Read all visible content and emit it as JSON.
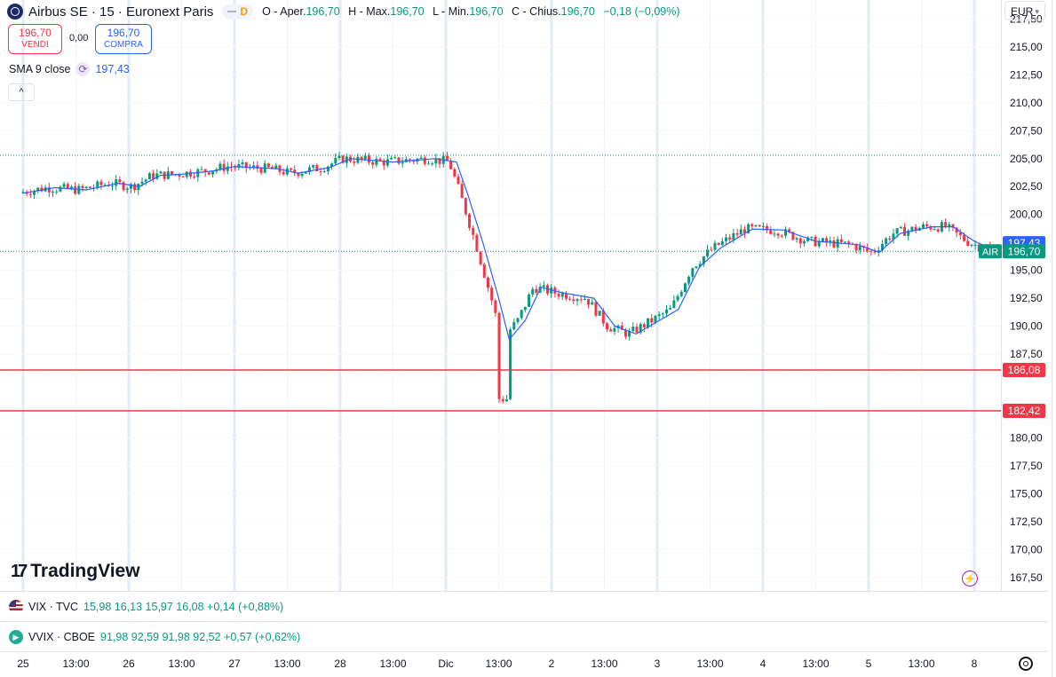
{
  "header": {
    "title": "Airbus SE · 15 · Euronext Paris",
    "flag_letter": "D",
    "ohlc": {
      "open_label": "O - Aper.",
      "open": "196,70",
      "high_label": "H - Max.",
      "high": "196,70",
      "low_label": "L - Min.",
      "low": "196,70",
      "close_label": "C - Chius.",
      "close": "196,70",
      "change": "−0,18 (−0,09%)"
    }
  },
  "trade": {
    "sell_price": "196,70",
    "sell_label": "VENDI",
    "spread": "0,00",
    "buy_price": "196,70",
    "buy_label": "COMPRA"
  },
  "sma": {
    "label": "SMA 9 close",
    "value": "197,43"
  },
  "collapse_glyph": "^",
  "currency": "EUR",
  "brand": "TradingView",
  "indicators": [
    {
      "label": "VIX · TVC",
      "values": "15,98  16,13  15,97  16,08  +0,14 (+0,88%)"
    },
    {
      "label": "VVIX · CBOE",
      "values": "91,98  92,59  91,98  92,52  +0,57 (+0,62%)"
    }
  ],
  "colors": {
    "up": "#089981",
    "down": "#f23645",
    "sma": "#2962ff",
    "level": "#f23645"
  },
  "chart_data": {
    "type": "candlestick",
    "symbol": "AIR",
    "ylim": [
      166.3,
      219.2
    ],
    "y_ticks": [
      "217,50",
      "215,00",
      "212,50",
      "210,00",
      "207,50",
      "205,00",
      "202,50",
      "200,00",
      "195,00",
      "192,50",
      "190,00",
      "187,50",
      "180,00",
      "177,50",
      "175,00",
      "172,50",
      "170,00",
      "167,50"
    ],
    "x_ticks": [
      "25",
      "13:00",
      "26",
      "13:00",
      "27",
      "13:00",
      "28",
      "13:00",
      "Dic",
      "13:00",
      "2",
      "13:00",
      "3",
      "13:00",
      "4",
      "13:00",
      "5",
      "13:00",
      "8"
    ],
    "price_labels": [
      {
        "text": "197,43",
        "value": 197.43,
        "color": "#2962ff"
      },
      {
        "text": "196,70",
        "value": 196.7,
        "color": "#089981",
        "tag": "AIR"
      },
      {
        "text": "186,08",
        "value": 186.08,
        "color": "#f23645"
      },
      {
        "text": "182,42",
        "value": 182.42,
        "color": "#f23645"
      }
    ],
    "horizontal_levels": [
      186.08,
      182.42
    ],
    "dotted_levels": [
      205.3,
      196.7
    ],
    "series": [
      {
        "name": "SMA 9 close",
        "points": [
          [
            0.0,
            201.9
          ],
          [
            0.3,
            202.4
          ],
          [
            0.6,
            202.2
          ],
          [
            0.9,
            202.8
          ],
          [
            1.1,
            202.5
          ],
          [
            1.3,
            203.5
          ],
          [
            1.5,
            203.6
          ],
          [
            1.8,
            203.9
          ],
          [
            2.0,
            204.3
          ],
          [
            2.4,
            204.1
          ],
          [
            2.6,
            203.7
          ],
          [
            2.9,
            204.2
          ],
          [
            3.1,
            205.0
          ],
          [
            3.5,
            204.7
          ],
          [
            3.9,
            205.0
          ],
          [
            4.1,
            204.7
          ],
          [
            4.2,
            202.0
          ],
          [
            4.35,
            197.5
          ],
          [
            4.5,
            192.5
          ],
          [
            4.6,
            188.8
          ],
          [
            4.75,
            190.5
          ],
          [
            4.9,
            193.5
          ],
          [
            5.1,
            193.0
          ],
          [
            5.4,
            192.5
          ],
          [
            5.6,
            190.0
          ],
          [
            5.8,
            189.3
          ],
          [
            6.0,
            190.4
          ],
          [
            6.2,
            191.5
          ],
          [
            6.4,
            195.3
          ],
          [
            6.6,
            197.0
          ],
          [
            6.9,
            198.7
          ],
          [
            7.2,
            198.6
          ],
          [
            7.5,
            197.6
          ],
          [
            7.9,
            197.3
          ],
          [
            8.1,
            196.6
          ],
          [
            8.3,
            198.3
          ],
          [
            8.6,
            198.9
          ],
          [
            8.8,
            198.9
          ],
          [
            9.0,
            197.6
          ],
          [
            9.15,
            197.0
          ]
        ]
      }
    ]
  }
}
